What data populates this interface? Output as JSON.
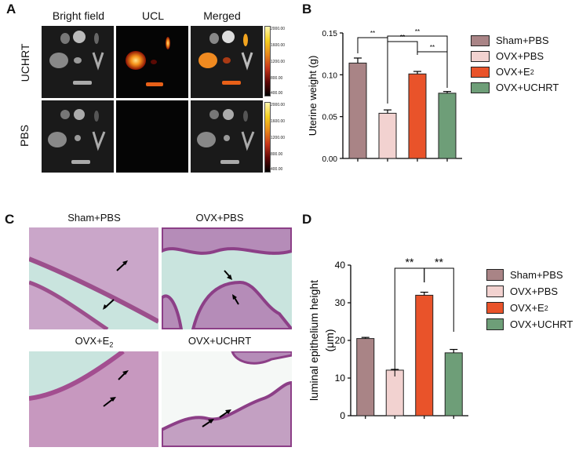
{
  "panel_labels": {
    "A": "A",
    "B": "B",
    "C": "C",
    "D": "D"
  },
  "panel_a": {
    "columns": [
      "Bright field",
      "UCL",
      "Merged"
    ],
    "rows": [
      "UCHRT",
      "PBS"
    ],
    "colorbar_ticks": [
      "2000.00",
      "1600.00",
      "1200.00",
      "800.00",
      "400.00"
    ]
  },
  "panel_c": {
    "labels": [
      "Sham+PBS",
      "OVX+PBS",
      "OVX+E",
      "OVX+UCHRT"
    ],
    "subscript": "2"
  },
  "legend": [
    {
      "name": "Sham+PBS",
      "color": "#a98486"
    },
    {
      "name": "OVX+PBS",
      "color": "#f2d2d0"
    },
    {
      "name": "OVX+E",
      "sub": "2",
      "color": "#e9532a"
    },
    {
      "name": "OVX+UCHRT",
      "color": "#6e9e78"
    }
  ],
  "chart_data": [
    {
      "type": "bar",
      "panel": "B",
      "categories": [
        "Sham+PBS",
        "OVX+PBS",
        "OVX+E2",
        "OVX+UCHRT"
      ],
      "values": [
        0.114,
        0.054,
        0.101,
        0.078
      ],
      "errors": [
        0.006,
        0.004,
        0.003,
        0.002
      ],
      "colors": [
        "#a98486",
        "#f2d2d0",
        "#e9532a",
        "#6e9e78"
      ],
      "ylabel": "Uterine weight (g)",
      "ylim": [
        0,
        0.15
      ],
      "yticks": [
        "0.00",
        "0.05",
        "0.10",
        "0.15"
      ],
      "significance": [
        {
          "from": 0,
          "to": 1,
          "label": "**"
        },
        {
          "from": 1,
          "to": 2,
          "label": "**"
        },
        {
          "from": 1,
          "to": 3,
          "label": "**"
        },
        {
          "from": 2,
          "to": 3,
          "label": "**"
        }
      ]
    },
    {
      "type": "bar",
      "panel": "D",
      "categories": [
        "Sham+PBS",
        "OVX+PBS",
        "OVX+E2",
        "OVX+UCHRT"
      ],
      "values": [
        20.5,
        12.1,
        32.0,
        16.7
      ],
      "errors": [
        0.3,
        0.2,
        0.8,
        0.9
      ],
      "colors": [
        "#a98486",
        "#f2d2d0",
        "#e9532a",
        "#6e9e78"
      ],
      "ylabel": "luminal epithelium height",
      "ylabel2": "(μm)",
      "ylim": [
        0,
        40
      ],
      "yticks": [
        "0",
        "10",
        "20",
        "30",
        "40"
      ],
      "significance": [
        {
          "from": 1,
          "to": 2,
          "label": "**"
        },
        {
          "from": 2,
          "to": 3,
          "label": "**"
        }
      ]
    }
  ]
}
